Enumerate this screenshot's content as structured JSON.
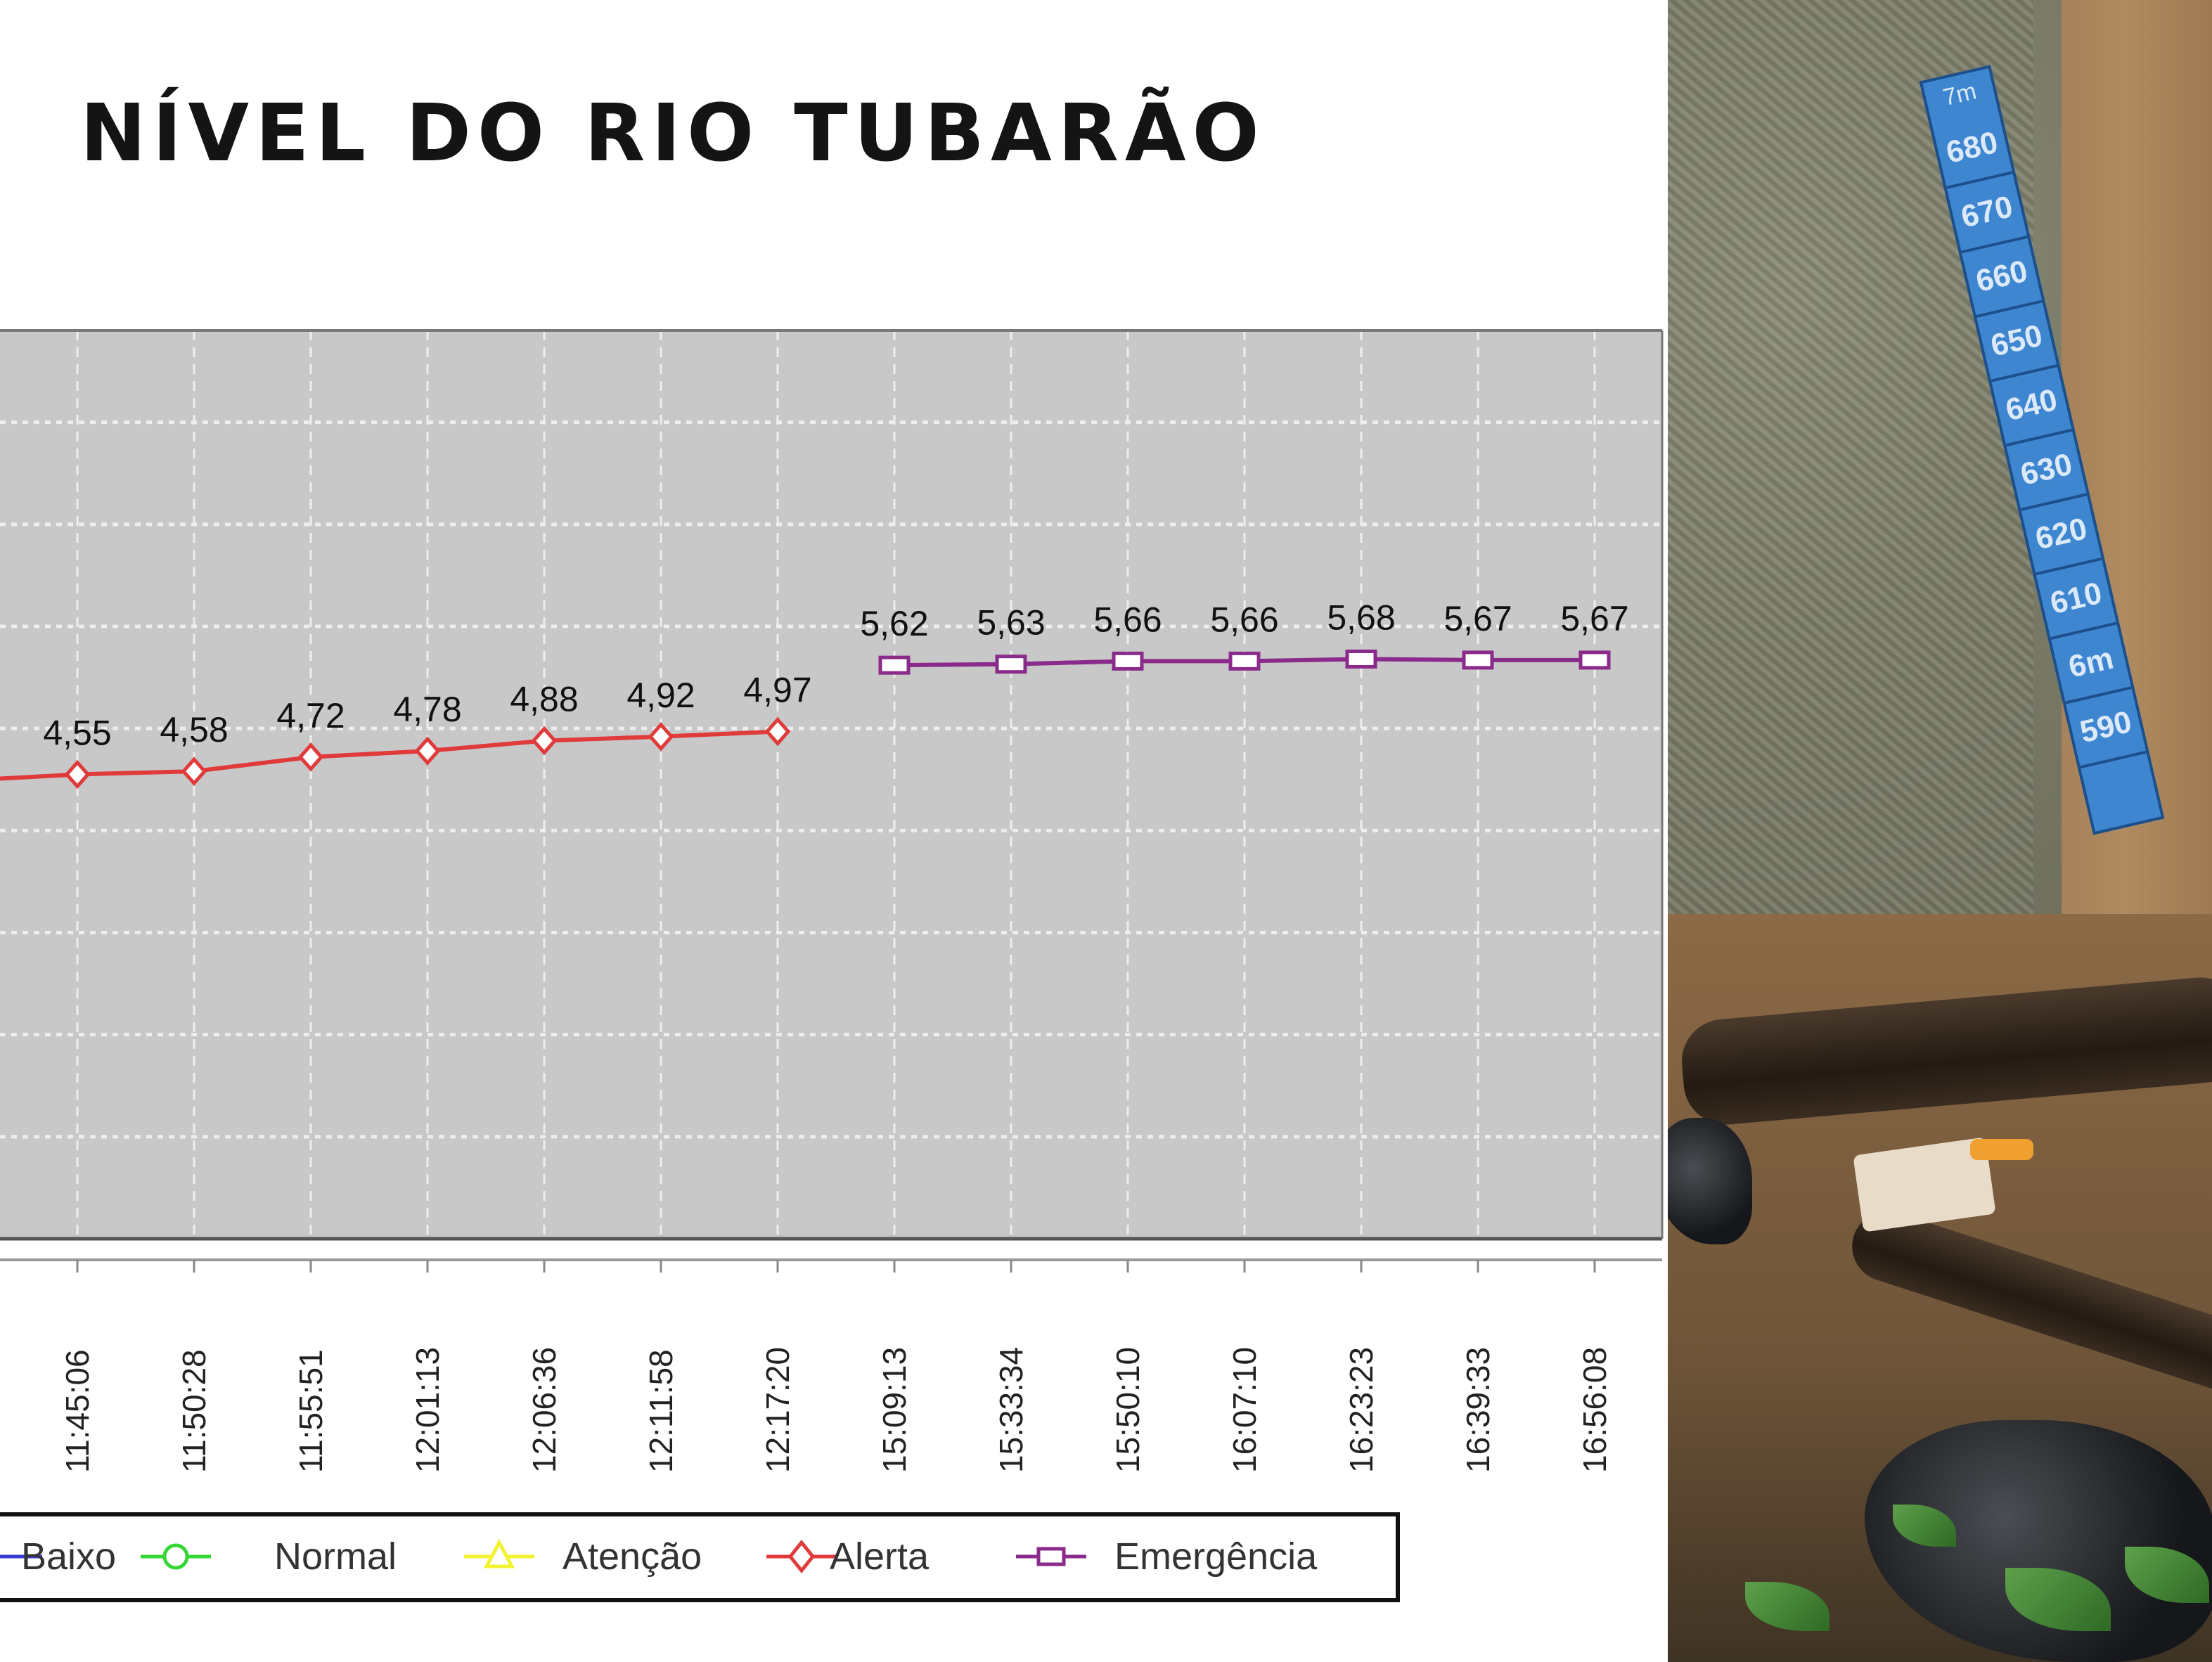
{
  "title": "NÍVEL DO RIO TUBARÃO",
  "chart_data": {
    "type": "line",
    "title": "NÍVEL DO RIO TUBARÃO",
    "xlabel": "",
    "ylabel": "",
    "categories": [
      "11:45:06",
      "11:50:28",
      "11:55:51",
      "12:01:13",
      "12:06:36",
      "12:11:58",
      "12:17:20",
      "15:09:13",
      "15:33:34",
      "15:50:10",
      "16:07:10",
      "16:23:23",
      "16:39:33",
      "16:56:08"
    ],
    "series": [
      {
        "name": "Baixo",
        "color": "#3a3ad0",
        "marker": "none",
        "values": [
          null,
          null,
          null,
          null,
          null,
          null,
          null,
          null,
          null,
          null,
          null,
          null,
          null,
          null
        ]
      },
      {
        "name": "Normal",
        "color": "#35d635",
        "marker": "circle",
        "values": [
          null,
          null,
          null,
          null,
          null,
          null,
          null,
          null,
          null,
          null,
          null,
          null,
          null,
          null
        ]
      },
      {
        "name": "Atenção",
        "color": "#f2f230",
        "marker": "triangle",
        "values": [
          null,
          null,
          null,
          null,
          null,
          null,
          null,
          null,
          null,
          null,
          null,
          null,
          null,
          null
        ]
      },
      {
        "name": "Alerta",
        "color": "#e03a3a",
        "marker": "diamond",
        "values": [
          4.55,
          4.58,
          4.72,
          4.78,
          4.88,
          4.92,
          4.97,
          null,
          null,
          null,
          null,
          null,
          null,
          null
        ],
        "labels": [
          "4,55",
          "4,58",
          "4,72",
          "4,78",
          "4,88",
          "4,92",
          "4,97"
        ]
      },
      {
        "name": "Emergência",
        "color": "#8a2a8a",
        "marker": "square",
        "values": [
          null,
          null,
          null,
          null,
          null,
          null,
          null,
          5.62,
          5.63,
          5.66,
          5.66,
          5.68,
          5.67,
          5.67
        ],
        "labels": [
          "5,62",
          "5,63",
          "5,66",
          "5,66",
          "5,68",
          "5,67",
          "5,67"
        ]
      }
    ],
    "ylim": [
      0,
      8.9
    ],
    "grid": true,
    "legend": "bottom",
    "plot_background": "#c8c8c8"
  },
  "photo": {
    "gauge_top": "7m",
    "gauge_labels": [
      "680",
      "670",
      "660",
      "650",
      "640",
      "630",
      "620",
      "610",
      "6m",
      "590"
    ]
  }
}
